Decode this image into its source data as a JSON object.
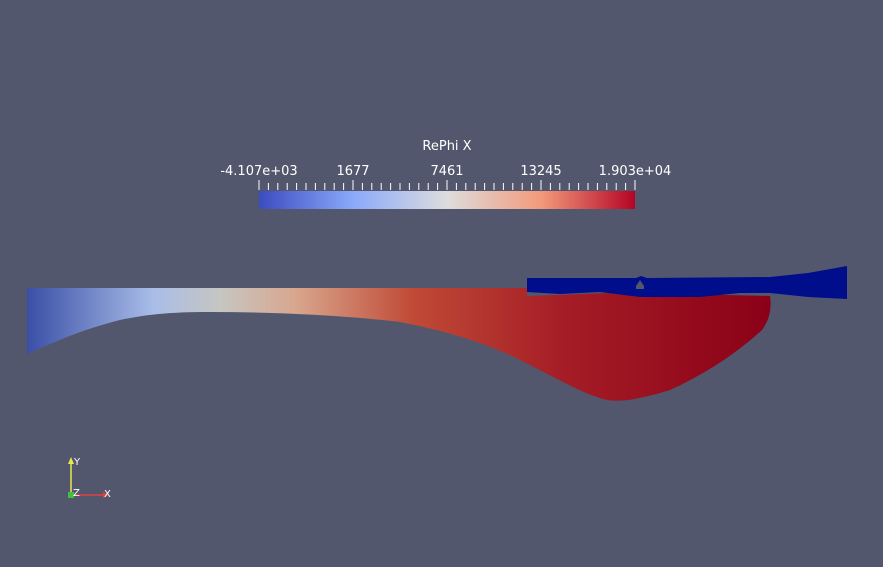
{
  "color_legend": {
    "title": "RePhi X",
    "tick_labels": [
      "-4.107e+03",
      "1677",
      "7461",
      "13245",
      "1.903e+04"
    ],
    "range": [
      -4107,
      19030
    ],
    "colormap": [
      "#3b4cc0",
      "#dddddd",
      "#b40426"
    ]
  },
  "orientation_axes": {
    "y_label": "Y",
    "z_label": "Z",
    "x_label": "X",
    "colors": {
      "x": "#e04040",
      "y": "#e8e84a",
      "z": "#40c040"
    }
  },
  "scene": {
    "background": "#52576e",
    "field_colors": {
      "low": "#3b4cc0",
      "mid": "#c9c9c9",
      "high": "#8b0017",
      "overlay": "#000e8c"
    }
  }
}
